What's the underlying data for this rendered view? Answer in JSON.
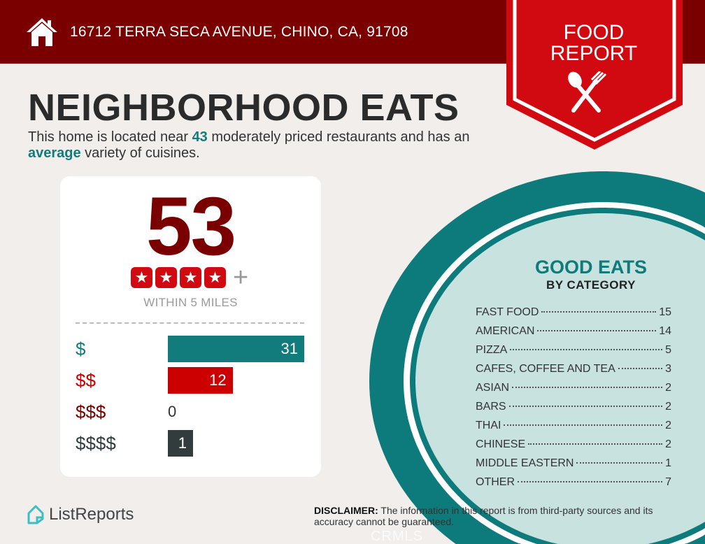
{
  "header": {
    "address": "16712 TERRA SECA AVENUE, CHINO, CA, 91708",
    "home_icon": "home-icon"
  },
  "badge": {
    "line1": "FOOD",
    "line2": "REPORT",
    "icon": "spoon-fork-icon",
    "color": "#d10a12"
  },
  "title": "NEIGHBORHOOD EATS",
  "subtitle": {
    "part1": "This home is located near ",
    "count": "43",
    "part2": " moderately priced restaurants and has an ",
    "variety": "average",
    "part3": " variety of cuisines."
  },
  "summary": {
    "total": "53",
    "stars": 4,
    "plus": "+",
    "radius_label": "WITHIN 5 MILES",
    "price_levels": [
      {
        "label": "$",
        "value": 31,
        "color": "#127c7c",
        "label_color": "#127c7c"
      },
      {
        "label": "$$",
        "value": 12,
        "color": "#cc0000",
        "label_color": "#cc0000"
      },
      {
        "label": "$$$",
        "value": 0,
        "color": "#7a0000",
        "label_color": "#7a0000"
      },
      {
        "label": "$$$$",
        "value": 1,
        "color": "#333c3c",
        "label_color": "#333c3c"
      }
    ]
  },
  "good_eats": {
    "title": "GOOD EATS",
    "subtitle": "BY CATEGORY",
    "categories": [
      {
        "name": "FAST FOOD",
        "count": "15"
      },
      {
        "name": "AMERICAN",
        "count": "14"
      },
      {
        "name": "PIZZA",
        "count": "5"
      },
      {
        "name": "CAFES, COFFEE AND TEA",
        "count": "3"
      },
      {
        "name": "ASIAN",
        "count": "2"
      },
      {
        "name": "BARS",
        "count": "2"
      },
      {
        "name": "THAI",
        "count": "2"
      },
      {
        "name": "CHINESE",
        "count": "2"
      },
      {
        "name": "MIDDLE EASTERN",
        "count": "1"
      },
      {
        "name": "OTHER",
        "count": "7"
      }
    ]
  },
  "footer": {
    "logo": "ListReports",
    "disclaimer_label": "DISCLAIMER:",
    "disclaimer_text": " The information in this report is from third-party sources and its accuracy cannot be guaranteed.",
    "watermark": "CRMLS"
  },
  "colors": {
    "header": "#7a0000",
    "teal": "#0f7b7b",
    "plate": "#c7e2df",
    "background": "#f1eeeb"
  }
}
